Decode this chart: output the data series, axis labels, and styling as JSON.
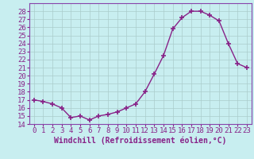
{
  "x": [
    0,
    1,
    2,
    3,
    4,
    5,
    6,
    7,
    8,
    9,
    10,
    11,
    12,
    13,
    14,
    15,
    16,
    17,
    18,
    19,
    20,
    21,
    22,
    23
  ],
  "y": [
    17.0,
    16.8,
    16.5,
    16.0,
    14.8,
    15.0,
    14.5,
    15.0,
    15.2,
    15.5,
    16.0,
    16.5,
    18.0,
    20.2,
    22.5,
    25.8,
    27.2,
    28.0,
    28.0,
    27.5,
    26.8,
    24.0,
    21.5,
    21.0
  ],
  "line_color": "#882288",
  "marker": "+",
  "marker_size": 5,
  "bg_color": "#c8eef0",
  "grid_color": "#aacccc",
  "xlabel": "Windchill (Refroidissement éolien,°C)",
  "ylim": [
    14,
    29
  ],
  "xlim": [
    -0.5,
    23.5
  ],
  "yticks": [
    14,
    15,
    16,
    17,
    18,
    19,
    20,
    21,
    22,
    23,
    24,
    25,
    26,
    27,
    28
  ],
  "xticks": [
    0,
    1,
    2,
    3,
    4,
    5,
    6,
    7,
    8,
    9,
    10,
    11,
    12,
    13,
    14,
    15,
    16,
    17,
    18,
    19,
    20,
    21,
    22,
    23
  ],
  "xlabel_fontsize": 7,
  "tick_fontsize": 6.5,
  "line_width": 1.0,
  "spine_color": "#8844aa",
  "outer_bg": "#c8eef0"
}
